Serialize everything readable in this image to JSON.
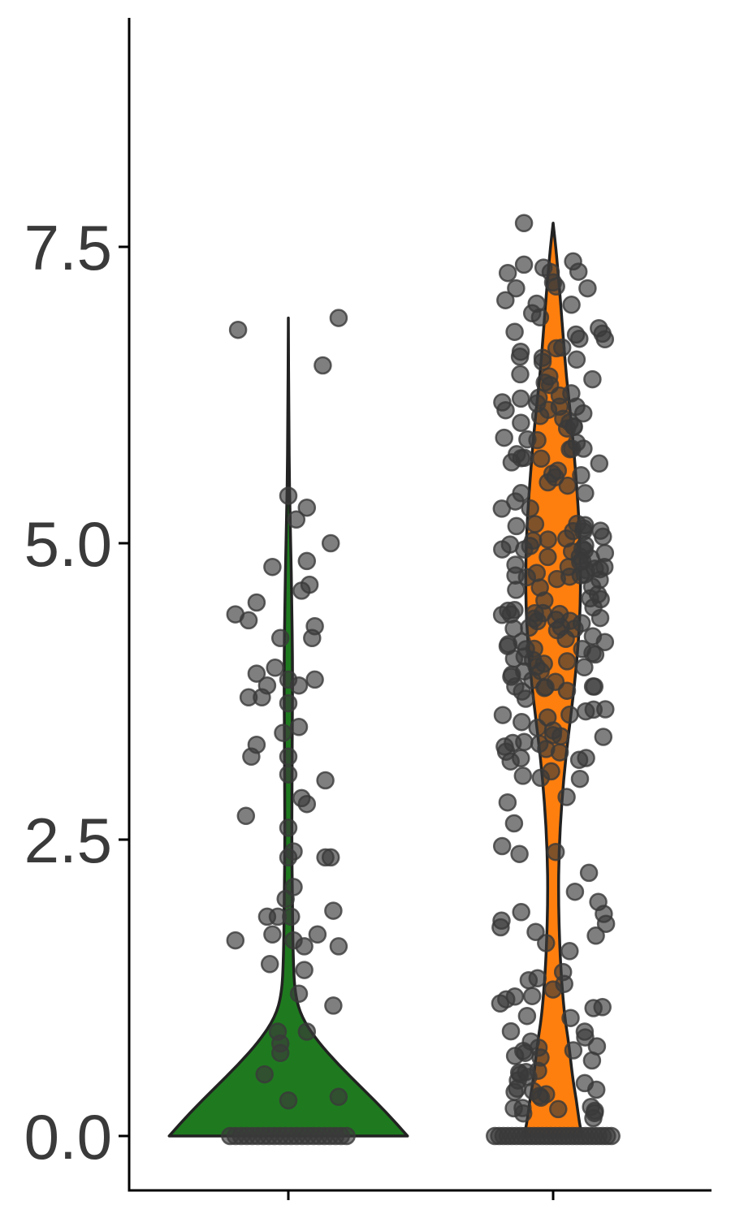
{
  "chart_data": {
    "type": "violin",
    "title": "",
    "xlabel": "",
    "ylabel": "",
    "categories": [
      "",
      ""
    ],
    "ylim": [
      -0.4,
      9.5
    ],
    "yticks": [
      0.0,
      2.5,
      5.0,
      7.5
    ],
    "ytick_labels": [
      "0.0",
      "2.5",
      "5.0",
      "7.5"
    ],
    "grid": false,
    "legend": "none",
    "point_color": "#3a3a3a",
    "outline_color": "#222222",
    "series": [
      {
        "fill": "#1f7a1f",
        "max": 6.9,
        "zero_points": 22,
        "violin_profile": [
          [
            0.0,
            0.45
          ],
          [
            0.2,
            0.37
          ],
          [
            0.4,
            0.28
          ],
          [
            0.6,
            0.19
          ],
          [
            0.8,
            0.11
          ],
          [
            1.0,
            0.05
          ],
          [
            1.2,
            0.025
          ],
          [
            1.5,
            0.018
          ],
          [
            2.0,
            0.015
          ],
          [
            2.5,
            0.013
          ],
          [
            3.0,
            0.014
          ],
          [
            3.5,
            0.015
          ],
          [
            4.0,
            0.016
          ],
          [
            4.5,
            0.013
          ],
          [
            5.0,
            0.009
          ],
          [
            5.5,
            0.004
          ],
          [
            6.0,
            0.002
          ],
          [
            6.9,
            0.0
          ]
        ],
        "points": [
          [
            -0.19,
            6.8
          ],
          [
            0.19,
            6.9
          ],
          [
            0.13,
            6.5
          ],
          [
            0.07,
            5.3
          ],
          [
            0.0,
            5.4
          ],
          [
            0.03,
            5.2
          ],
          [
            0.16,
            5.0
          ],
          [
            0.07,
            4.85
          ],
          [
            -0.06,
            4.8
          ],
          [
            0.08,
            4.65
          ],
          [
            0.05,
            4.6
          ],
          [
            -0.12,
            4.5
          ],
          [
            -0.2,
            4.4
          ],
          [
            -0.15,
            4.35
          ],
          [
            0.1,
            4.3
          ],
          [
            -0.03,
            4.2
          ],
          [
            0.09,
            4.2
          ],
          [
            -0.12,
            3.9
          ],
          [
            -0.05,
            3.95
          ],
          [
            0.0,
            3.85
          ],
          [
            0.1,
            3.85
          ],
          [
            -0.08,
            3.8
          ],
          [
            0.04,
            3.8
          ],
          [
            -0.15,
            3.7
          ],
          [
            -0.1,
            3.7
          ],
          [
            0.0,
            3.65
          ],
          [
            0.04,
            3.45
          ],
          [
            -0.02,
            3.4
          ],
          [
            -0.12,
            3.3
          ],
          [
            -0.14,
            3.2
          ],
          [
            0.0,
            3.2
          ],
          [
            0.0,
            3.05
          ],
          [
            0.14,
            3.0
          ],
          [
            0.05,
            2.85
          ],
          [
            0.07,
            2.8
          ],
          [
            -0.16,
            2.7
          ],
          [
            0.0,
            2.6
          ],
          [
            0.02,
            2.4
          ],
          [
            0.0,
            2.35
          ],
          [
            0.14,
            2.35
          ],
          [
            0.16,
            2.35
          ],
          [
            0.02,
            2.1
          ],
          [
            -0.01,
            2.0
          ],
          [
            0.17,
            1.9
          ],
          [
            -0.08,
            1.85
          ],
          [
            -0.04,
            1.85
          ],
          [
            0.01,
            1.85
          ],
          [
            -0.2,
            1.65
          ],
          [
            0.11,
            1.7
          ],
          [
            -0.06,
            1.7
          ],
          [
            0.02,
            1.65
          ],
          [
            0.06,
            1.6
          ],
          [
            0.19,
            1.6
          ],
          [
            -0.07,
            1.45
          ],
          [
            0.06,
            1.4
          ],
          [
            0.04,
            1.2
          ],
          [
            0.17,
            1.1
          ],
          [
            0.07,
            0.88
          ],
          [
            -0.04,
            0.88
          ],
          [
            -0.03,
            0.78
          ],
          [
            -0.03,
            0.7
          ],
          [
            -0.09,
            0.52
          ],
          [
            0.19,
            0.33
          ],
          [
            0.0,
            0.3
          ]
        ]
      },
      {
        "fill": "#ff7f0e",
        "max": 7.7,
        "zero_points": 28,
        "violin_profile": [
          [
            0.0,
            0.11
          ],
          [
            0.1,
            0.1
          ],
          [
            0.3,
            0.088
          ],
          [
            0.5,
            0.073
          ],
          [
            0.8,
            0.058
          ],
          [
            1.0,
            0.044
          ],
          [
            1.3,
            0.032
          ],
          [
            1.6,
            0.025
          ],
          [
            2.0,
            0.02
          ],
          [
            2.4,
            0.022
          ],
          [
            2.8,
            0.032
          ],
          [
            3.2,
            0.048
          ],
          [
            3.6,
            0.07
          ],
          [
            4.0,
            0.09
          ],
          [
            4.4,
            0.102
          ],
          [
            4.8,
            0.104
          ],
          [
            5.2,
            0.098
          ],
          [
            5.6,
            0.085
          ],
          [
            6.0,
            0.07
          ],
          [
            6.4,
            0.05
          ],
          [
            6.8,
            0.036
          ],
          [
            7.2,
            0.022
          ],
          [
            7.5,
            0.01
          ],
          [
            7.7,
            0.0
          ]
        ]
      }
    ]
  }
}
